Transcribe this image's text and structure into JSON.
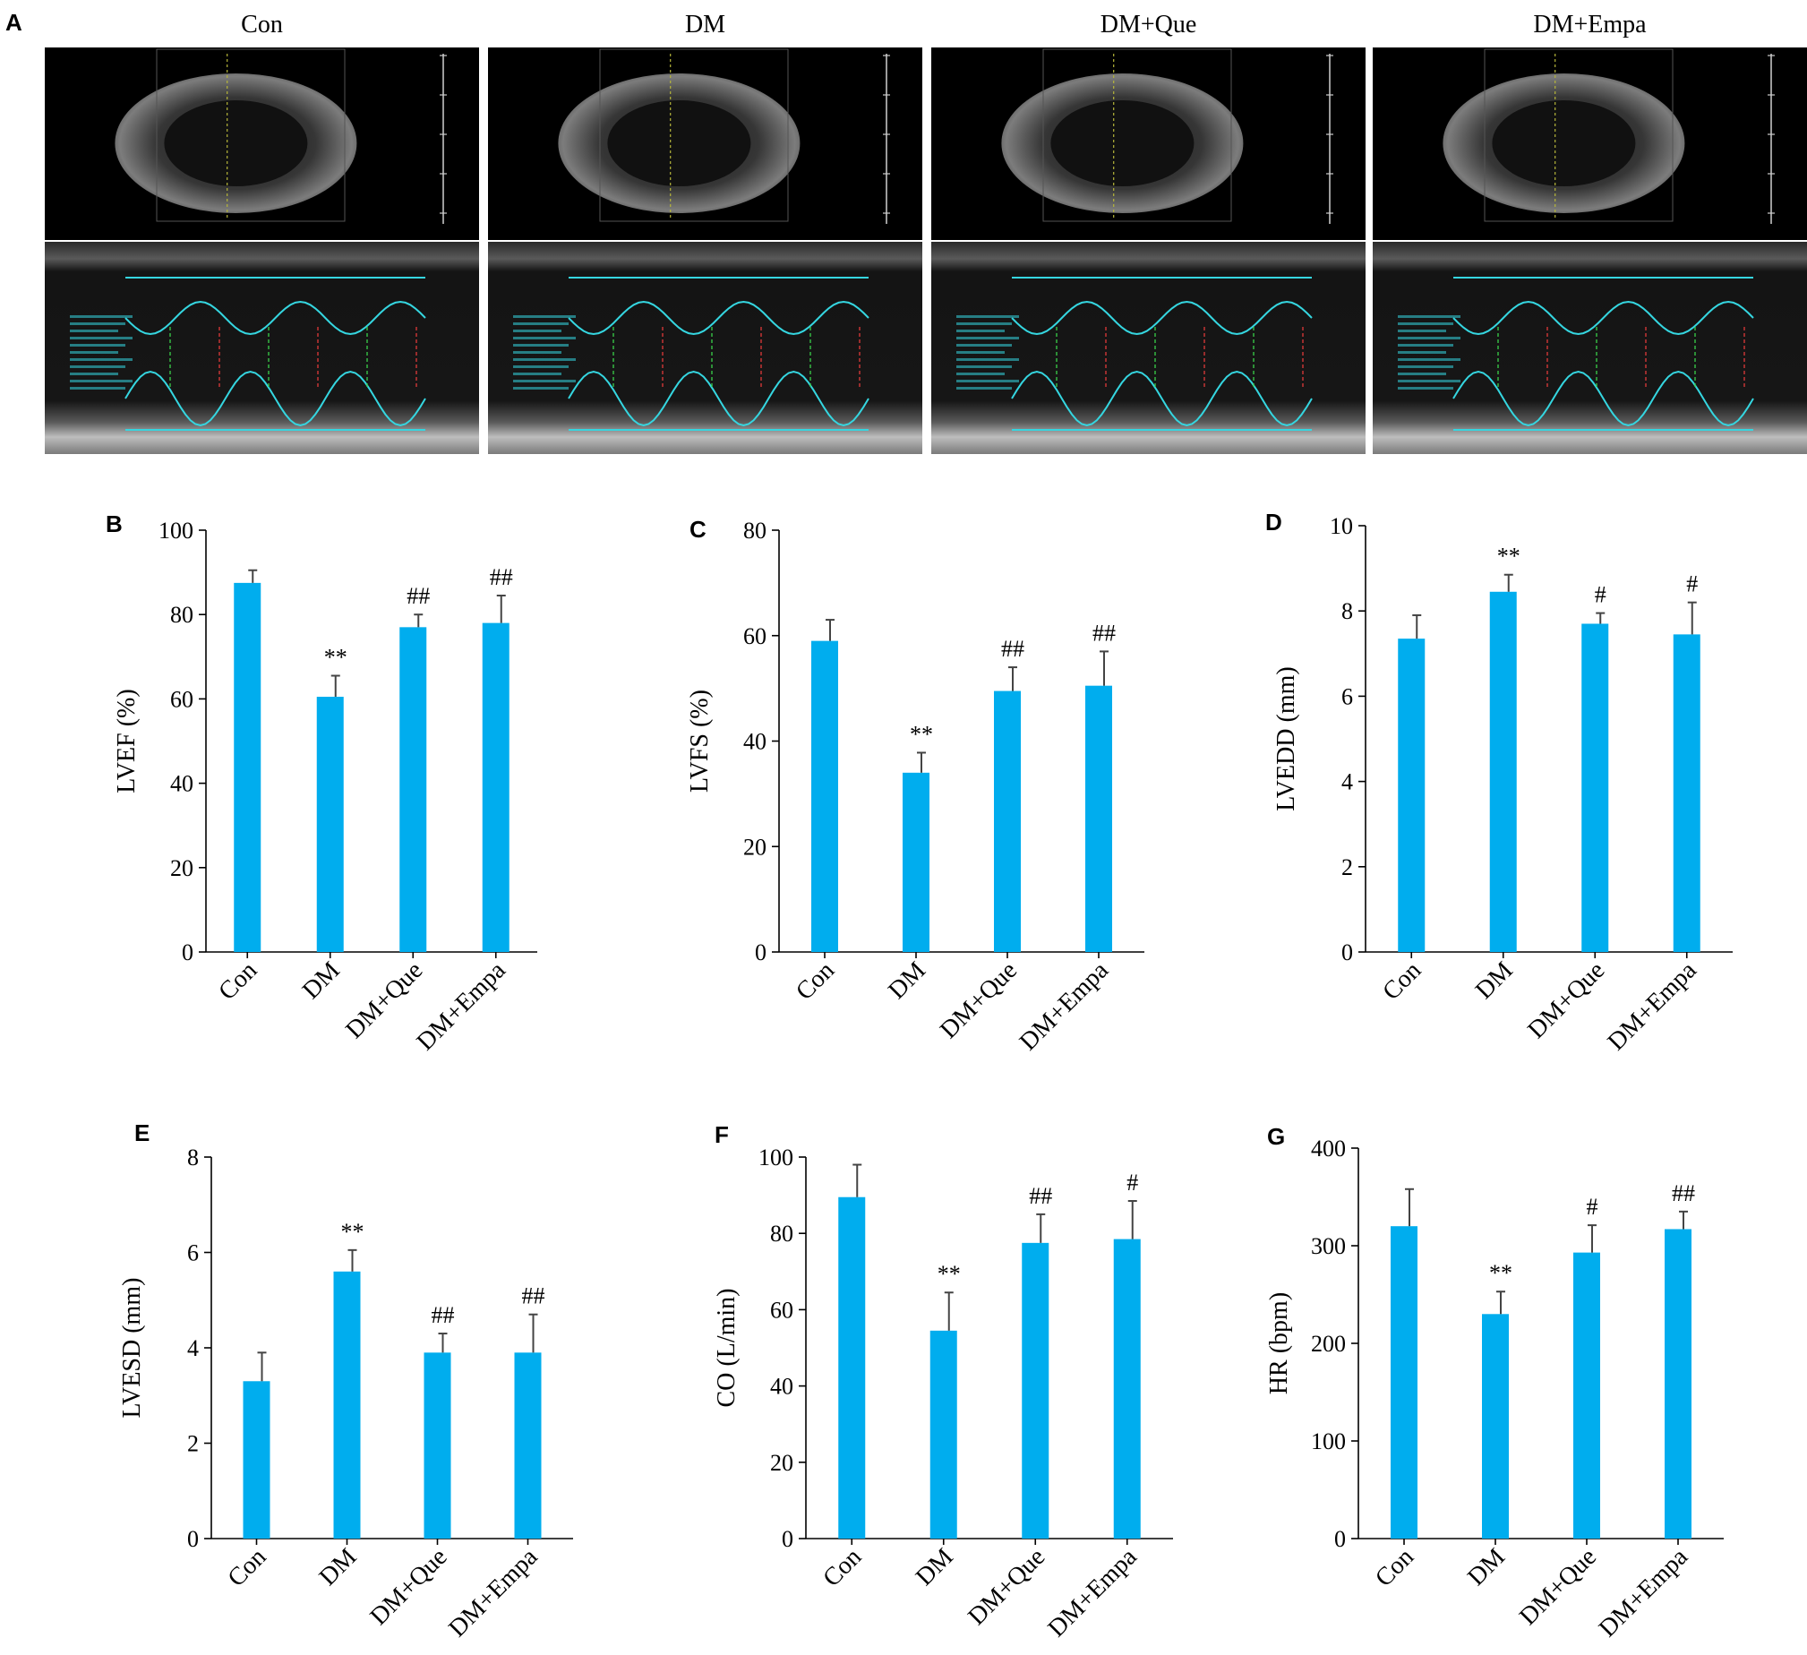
{
  "panel_a": {
    "letter": "A",
    "labels": [
      "Con",
      "DM",
      "DM+Que",
      "DM+Empa"
    ]
  },
  "chart_data": [
    {
      "letter": "B",
      "type": "bar",
      "categories": [
        "Con",
        "DM",
        "DM+Que",
        "DM+Empa"
      ],
      "values": [
        87.5,
        60.5,
        77,
        78
      ],
      "errors": [
        3,
        5,
        3,
        6.5
      ],
      "annotations": [
        "",
        "**",
        "##",
        "##"
      ],
      "ylabel": "LVEF (%)",
      "ylim": [
        0,
        100
      ],
      "yticks": [
        0,
        20,
        40,
        60,
        80,
        100
      ],
      "bar_color": "#00adee"
    },
    {
      "letter": "C",
      "type": "bar",
      "categories": [
        "Con",
        "DM",
        "DM+Que",
        "DM+Empa"
      ],
      "values": [
        59,
        34,
        49.5,
        50.5
      ],
      "errors": [
        4,
        3.8,
        4.5,
        6.5
      ],
      "annotations": [
        "",
        "**",
        "##",
        "##"
      ],
      "ylabel": "LVFS (%)",
      "ylim": [
        0,
        80
      ],
      "yticks": [
        0,
        20,
        40,
        60,
        80
      ],
      "bar_color": "#00adee"
    },
    {
      "letter": "D",
      "type": "bar",
      "categories": [
        "Con",
        "DM",
        "DM+Que",
        "DM+Empa"
      ],
      "values": [
        7.35,
        8.45,
        7.7,
        7.45
      ],
      "errors": [
        0.55,
        0.4,
        0.25,
        0.75
      ],
      "annotations": [
        "",
        "**",
        "#",
        "#"
      ],
      "ylabel": "LVEDD (mm)",
      "ylim": [
        0,
        10
      ],
      "yticks": [
        0,
        2,
        4,
        6,
        8,
        10
      ],
      "bar_color": "#00adee"
    },
    {
      "letter": "E",
      "type": "bar",
      "categories": [
        "Con",
        "DM",
        "DM+Que",
        "DM+Empa"
      ],
      "values": [
        3.3,
        5.6,
        3.9,
        3.9
      ],
      "errors": [
        0.6,
        0.45,
        0.4,
        0.8
      ],
      "annotations": [
        "",
        "**",
        "##",
        "##"
      ],
      "ylabel": "LVESD (mm)",
      "ylim": [
        0,
        8
      ],
      "yticks": [
        0,
        2,
        4,
        6,
        8
      ],
      "bar_color": "#00adee"
    },
    {
      "letter": "F",
      "type": "bar",
      "categories": [
        "Con",
        "DM",
        "DM+Que",
        "DM+Empa"
      ],
      "values": [
        89.5,
        54.5,
        77.5,
        78.5
      ],
      "errors": [
        8.5,
        10,
        7.5,
        10
      ],
      "annotations": [
        "",
        "**",
        "##",
        "#"
      ],
      "ylabel": "CO (L/min)",
      "ylim": [
        0,
        100
      ],
      "yticks": [
        0,
        20,
        40,
        60,
        80,
        100
      ],
      "bar_color": "#00adee"
    },
    {
      "letter": "G",
      "type": "bar",
      "categories": [
        "Con",
        "DM",
        "DM+Que",
        "DM+Empa"
      ],
      "values": [
        320,
        230,
        293,
        317
      ],
      "errors": [
        38,
        23,
        28,
        18
      ],
      "annotations": [
        "",
        "**",
        "#",
        "##"
      ],
      "ylabel": "HR (bpm)",
      "ylim": [
        0,
        400
      ],
      "yticks": [
        0,
        100,
        200,
        300,
        400
      ],
      "bar_color": "#00adee"
    }
  ]
}
